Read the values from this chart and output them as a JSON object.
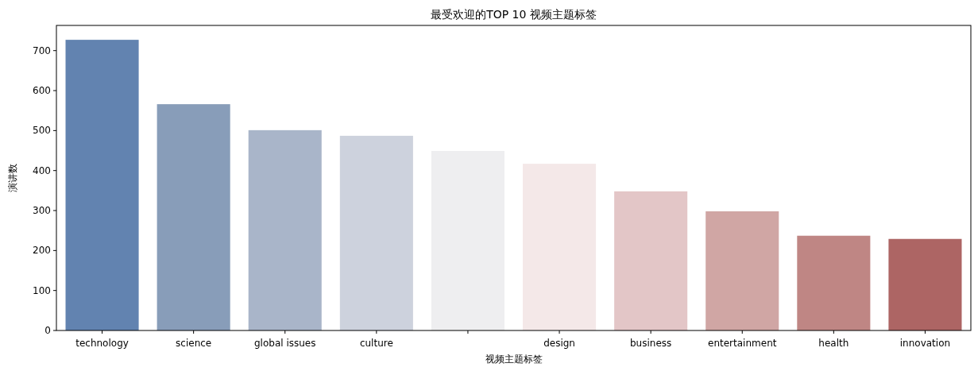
{
  "chart_data": {
    "type": "bar",
    "title": "最受欢迎的TOP 10 视频主题标签",
    "xlabel": "视频主题标签",
    "ylabel": "演讲数",
    "categories": [
      "technology",
      "science",
      "global issues",
      "culture",
      null,
      "design",
      "business",
      "entertainment",
      "health",
      "innovation"
    ],
    "values": [
      727,
      566,
      501,
      487,
      449,
      417,
      348,
      298,
      237,
      229
    ],
    "colors": [
      "#6283b0",
      "#889db9",
      "#a9b5c9",
      "#cdd2dd",
      "#eeeef0",
      "#f4e8e8",
      "#e3c6c7",
      "#d0a6a4",
      "#bf8684",
      "#ad6564"
    ],
    "ylim": [
      0,
      763
    ],
    "yticks": [
      0,
      100,
      200,
      300,
      400,
      500,
      600,
      700
    ]
  }
}
